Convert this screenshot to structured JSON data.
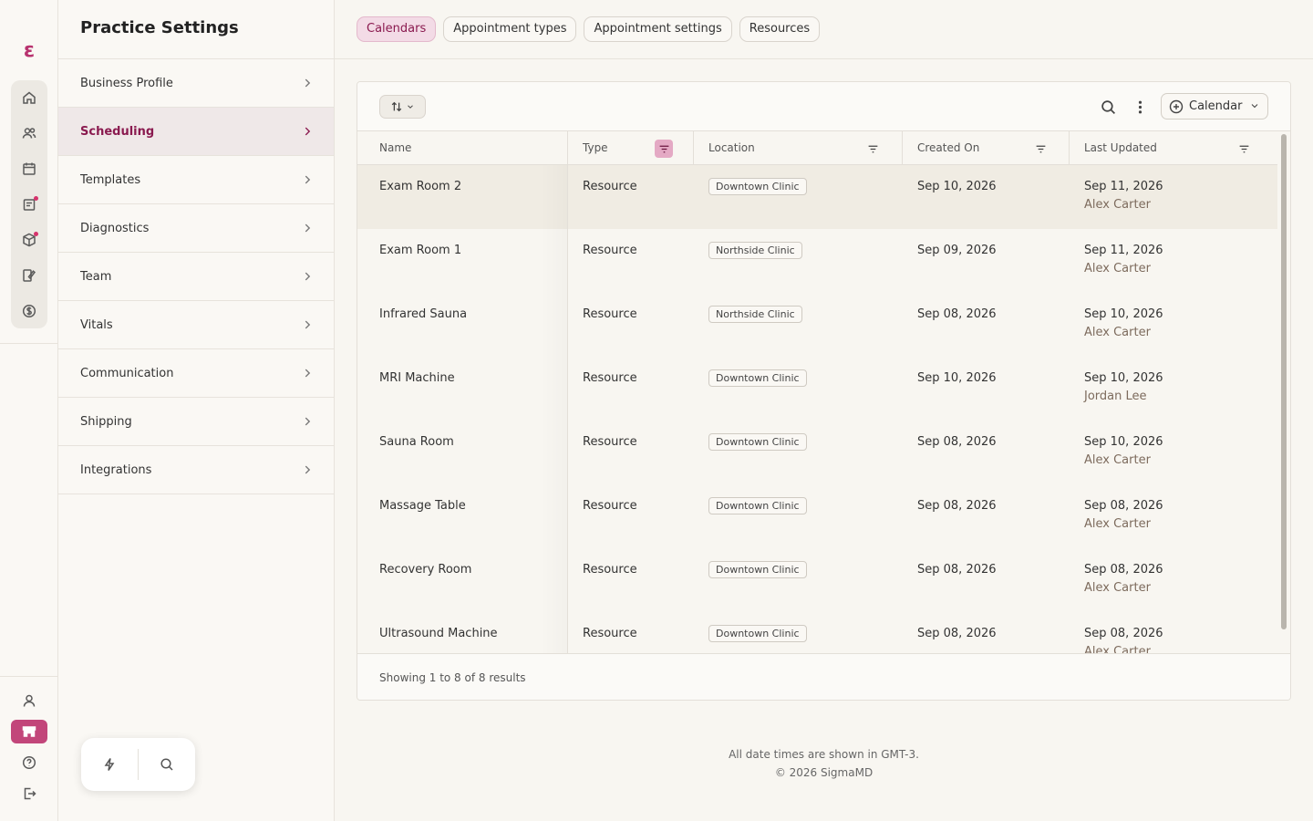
{
  "rail": {
    "logo": "ε",
    "items": [
      "home-icon",
      "users-icon",
      "calendar-icon",
      "clipboard-icon",
      "box-icon",
      "edit-icon",
      "dollar-icon"
    ],
    "bottom": [
      "user-icon",
      "store-icon",
      "help-icon",
      "logout-icon"
    ]
  },
  "settings": {
    "title": "Practice Settings",
    "items": [
      {
        "label": "Business Profile"
      },
      {
        "label": "Scheduling"
      },
      {
        "label": "Templates"
      },
      {
        "label": "Diagnostics"
      },
      {
        "label": "Team"
      },
      {
        "label": "Vitals"
      },
      {
        "label": "Communication"
      },
      {
        "label": "Shipping"
      },
      {
        "label": "Integrations"
      }
    ],
    "active_index": 1
  },
  "tabs": [
    {
      "label": "Calendars"
    },
    {
      "label": "Appointment types"
    },
    {
      "label": "Appointment settings"
    },
    {
      "label": "Resources"
    }
  ],
  "toolbar": {
    "add_label": "Calendar"
  },
  "table": {
    "columns": [
      "Name",
      "Type",
      "Location",
      "Created On",
      "Last Updated"
    ],
    "rows": [
      {
        "name": "Exam Room 2",
        "type": "Resource",
        "location": "Downtown Clinic",
        "created": "Sep 10, 2026",
        "updated": "Sep 11, 2026",
        "updater": "Alex Carter"
      },
      {
        "name": "Exam Room 1",
        "type": "Resource",
        "location": "Northside Clinic",
        "created": "Sep 09, 2026",
        "updated": "Sep 11, 2026",
        "updater": "Alex Carter"
      },
      {
        "name": "Infrared Sauna",
        "type": "Resource",
        "location": "Northside Clinic",
        "created": "Sep 08, 2026",
        "updated": "Sep 10, 2026",
        "updater": "Alex Carter"
      },
      {
        "name": "MRI Machine",
        "type": "Resource",
        "location": "Downtown Clinic",
        "created": "Sep 10, 2026",
        "updated": "Sep 10, 2026",
        "updater": "Jordan Lee"
      },
      {
        "name": "Sauna Room",
        "type": "Resource",
        "location": "Downtown Clinic",
        "created": "Sep 08, 2026",
        "updated": "Sep 10, 2026",
        "updater": "Alex Carter"
      },
      {
        "name": "Massage Table",
        "type": "Resource",
        "location": "Downtown Clinic",
        "created": "Sep 08, 2026",
        "updated": "Sep 08, 2026",
        "updater": "Alex Carter"
      },
      {
        "name": "Recovery Room",
        "type": "Resource",
        "location": "Downtown Clinic",
        "created": "Sep 08, 2026",
        "updated": "Sep 08, 2026",
        "updater": "Alex Carter"
      },
      {
        "name": "Ultrasound Machine",
        "type": "Resource",
        "location": "Downtown Clinic",
        "created": "Sep 08, 2026",
        "updated": "Sep 08, 2026",
        "updater": "Alex Carter"
      }
    ],
    "footer": "Showing 1 to 8 of 8 results"
  },
  "footer": {
    "timezone_note": "All date times are shown in GMT-3.",
    "copyright": "© 2026 SigmaMD"
  },
  "colors": {
    "accent": "#c2467a",
    "accent_dark": "#8a1a4f",
    "tab_active_bg": "#f3dbe6"
  }
}
